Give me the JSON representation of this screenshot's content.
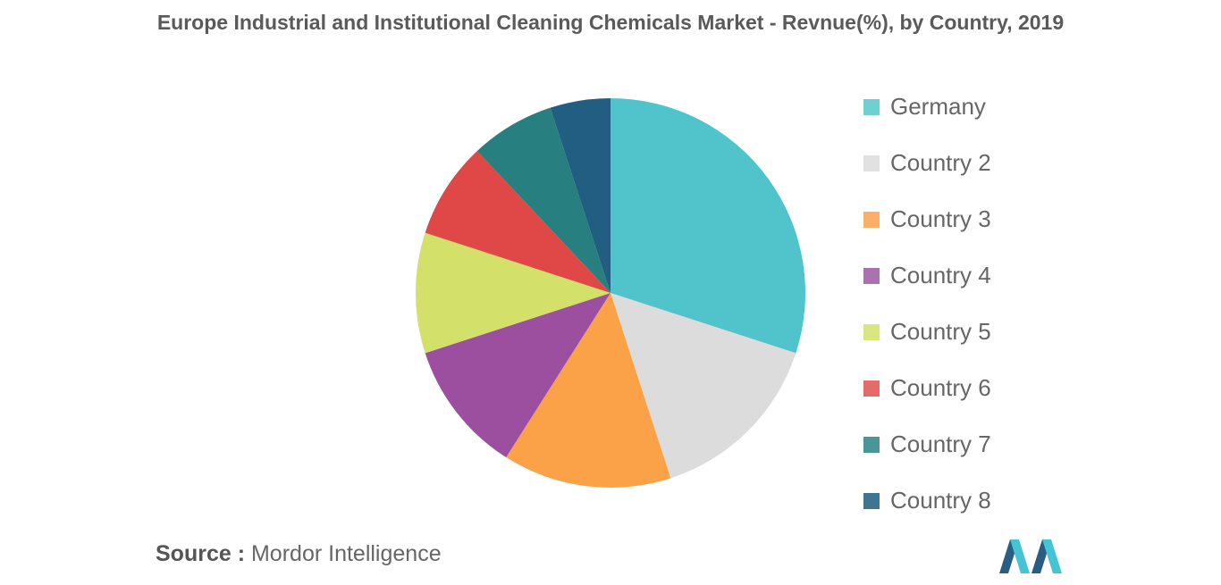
{
  "chart_data": {
    "type": "pie",
    "title": "Europe Industrial and Institutional Cleaning Chemicals Market - Revnue(%), by Country, 2019",
    "categories": [
      "Germany",
      "Country 2",
      "Country 3",
      "Country 4",
      "Country 5",
      "Country 6",
      "Country 7",
      "Country 8"
    ],
    "values": [
      30,
      15,
      14,
      11,
      10,
      8,
      7,
      5
    ],
    "colors": [
      "#50c4ca",
      "#dcdcdc",
      "#fba148",
      "#9c4f9f",
      "#d3e06a",
      "#e04848",
      "#277f80",
      "#225e82"
    ],
    "legend_colors": [
      "#6fd0d4",
      "#e1e1e1",
      "#fbb06a",
      "#ab72b0",
      "#dae67f",
      "#e56b6b",
      "#4a9596",
      "#3f7593"
    ],
    "legend_position": "right"
  },
  "source": {
    "label": "Source :",
    "text": "Mordor Intelligence"
  },
  "logo": {
    "icon": "mordor-intelligence-logo-icon",
    "colors": [
      "#2a5d83",
      "#46c4d4"
    ]
  }
}
